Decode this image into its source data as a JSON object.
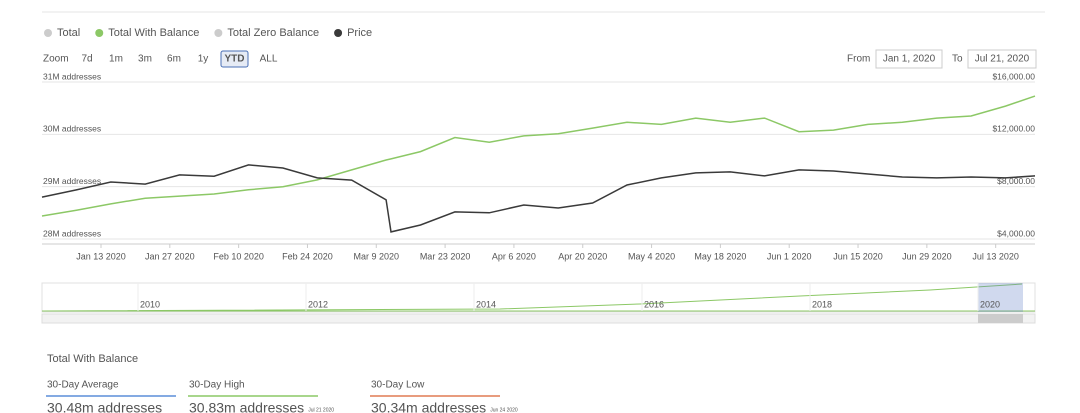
{
  "legend": [
    {
      "name": "Total",
      "color": "#cccccc"
    },
    {
      "name": "Total With Balance",
      "color": "#8cc866"
    },
    {
      "name": "Total Zero Balance",
      "color": "#cccccc"
    },
    {
      "name": "Price",
      "color": "#3a3a3a"
    }
  ],
  "zoom": {
    "label": "Zoom",
    "buttons": [
      "7d",
      "1m",
      "3m",
      "6m",
      "1y",
      "YTD",
      "ALL"
    ],
    "selected": "YTD"
  },
  "range": {
    "from_label": "From",
    "from": "Jan 1, 2020",
    "to_label": "To",
    "to": "Jul 21, 2020"
  },
  "chart_data": {
    "type": "line",
    "x": [
      "2020-01-01",
      "2020-01-08",
      "2020-01-15",
      "2020-01-22",
      "2020-01-29",
      "2020-02-05",
      "2020-02-12",
      "2020-02-19",
      "2020-02-26",
      "2020-03-04",
      "2020-03-11",
      "2020-03-12",
      "2020-03-18",
      "2020-03-25",
      "2020-04-01",
      "2020-04-08",
      "2020-04-15",
      "2020-04-22",
      "2020-04-29",
      "2020-05-06",
      "2020-05-13",
      "2020-05-20",
      "2020-05-27",
      "2020-06-03",
      "2020-06-10",
      "2020-06-17",
      "2020-06-24",
      "2020-07-01",
      "2020-07-08",
      "2020-07-15",
      "2020-07-21"
    ],
    "xlim": [
      "2020-01-01",
      "2020-07-21"
    ],
    "xticks": [
      {
        "value": "2020-01-13",
        "label": "Jan 13 2020"
      },
      {
        "value": "2020-01-27",
        "label": "Jan 27 2020"
      },
      {
        "value": "2020-02-10",
        "label": "Feb 10 2020"
      },
      {
        "value": "2020-02-24",
        "label": "Feb 24 2020"
      },
      {
        "value": "2020-03-09",
        "label": "Mar 9 2020"
      },
      {
        "value": "2020-03-23",
        "label": "Mar 23 2020"
      },
      {
        "value": "2020-04-06",
        "label": "Apr 6 2020"
      },
      {
        "value": "2020-04-20",
        "label": "Apr 20 2020"
      },
      {
        "value": "2020-05-04",
        "label": "May 4 2020"
      },
      {
        "value": "2020-05-18",
        "label": "May 18 2020"
      },
      {
        "value": "2020-06-01",
        "label": "Jun 1 2020"
      },
      {
        "value": "2020-06-15",
        "label": "Jun 15 2020"
      },
      {
        "value": "2020-06-29",
        "label": "Jun 29 2020"
      },
      {
        "value": "2020-07-13",
        "label": "Jul 13 2020"
      }
    ],
    "ylim": [
      28,
      31
    ],
    "yticks": [
      {
        "value": 28,
        "label": "28M addresses"
      },
      {
        "value": 29,
        "label": "29M addresses"
      },
      {
        "value": 30,
        "label": "30M addresses"
      },
      {
        "value": 31,
        "label": "31M addresses"
      }
    ],
    "y2lim": [
      4000,
      16000
    ],
    "y2ticks": [
      {
        "value": 4000,
        "label": "$4,000.00"
      },
      {
        "value": 8000,
        "label": "$8,000.00"
      },
      {
        "value": 12000,
        "label": "$12,000.00"
      },
      {
        "value": 16000,
        "label": "$16,000.00"
      }
    ],
    "grid": true,
    "series": [
      {
        "name": "Total With Balance",
        "color": "#8cc866",
        "values": [
          28.44,
          28.55,
          28.67,
          28.78,
          28.82,
          28.86,
          28.94,
          29.0,
          29.13,
          29.32,
          29.51,
          29.53,
          29.67,
          29.94,
          29.85,
          29.97,
          30.01,
          30.12,
          30.23,
          30.19,
          30.31,
          30.23,
          30.31,
          30.05,
          30.08,
          30.19,
          30.23,
          30.31,
          30.35,
          30.54,
          30.73
        ]
      },
      {
        "name": "Price",
        "color": "#3a3a3a",
        "axis": "y2",
        "values": [
          7200,
          7750,
          8360,
          8200,
          8900,
          8800,
          9660,
          9430,
          8670,
          8500,
          7000,
          4540,
          5070,
          6070,
          6000,
          6600,
          6370,
          6750,
          8130,
          8670,
          9050,
          9130,
          8820,
          9280,
          9200,
          8970,
          8740,
          8670,
          8740,
          8670,
          8820
        ]
      }
    ]
  },
  "navigator": {
    "years": [
      "2010",
      "2012",
      "2014",
      "2016",
      "2018",
      "2020"
    ]
  },
  "stats": {
    "title": "Total With Balance",
    "items": [
      {
        "label": "30-Day Average",
        "value": "30.48m addresses",
        "color": "#5b8dd9"
      },
      {
        "label": "30-Day High",
        "value": "30.83m addresses",
        "date": "Jul 21 2020",
        "color": "#8cc866"
      },
      {
        "label": "30-Day Low",
        "value": "30.34m addresses",
        "date": "Jun 24 2020",
        "color": "#e07b54"
      }
    ]
  }
}
